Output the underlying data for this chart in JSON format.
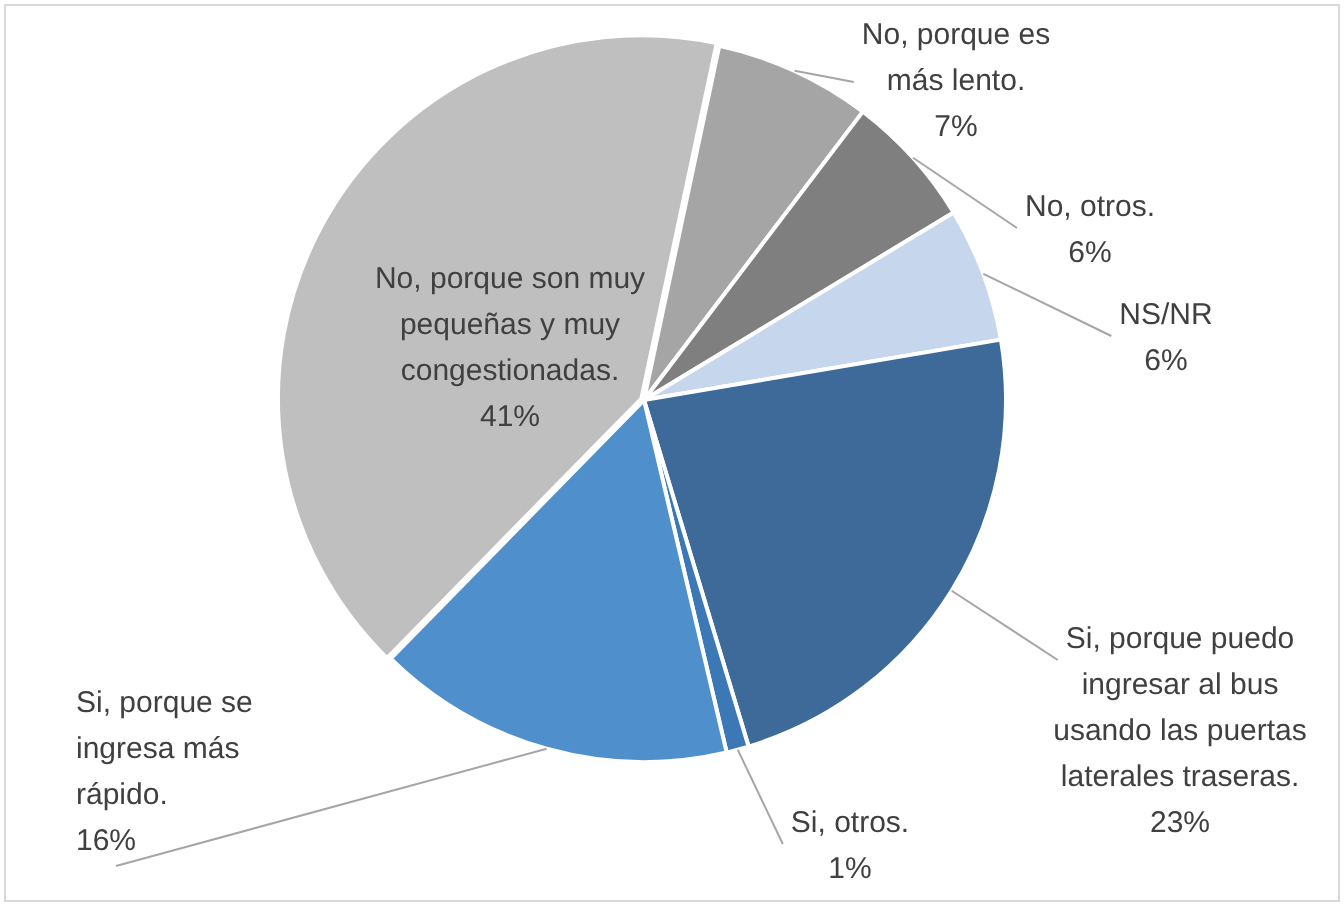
{
  "chart_data": {
    "type": "pie",
    "categories": [
      "No, porque es más lento.",
      "No, otros.",
      "NS/NR",
      "Si, porque puedo ingresar al bus usando las puertas laterales traseras.",
      "Si, otros.",
      "Si, porque se ingresa más rápido.",
      "No, porque son muy pequeñas y muy congestionadas."
    ],
    "values": [
      7,
      6,
      6,
      23,
      1,
      16,
      41
    ],
    "value_labels": [
      "7%",
      "6%",
      "6%",
      "23%",
      "1%",
      "16%",
      "41%"
    ],
    "colors": [
      "#a5a5a5",
      "#7f7f7f",
      "#c6d6ec",
      "#3d6a98",
      "#3b78b5",
      "#4f8fcb",
      "#bfbfbf"
    ],
    "legend": false
  }
}
